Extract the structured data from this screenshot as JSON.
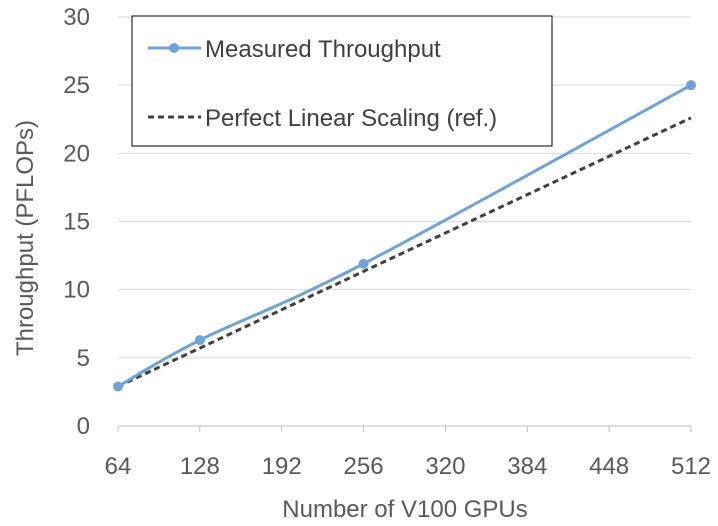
{
  "chart_data": {
    "type": "line",
    "xlabel": "Number of V100 GPUs",
    "ylabel": "Throughput (PFLOPs)",
    "xlim": [
      64,
      512
    ],
    "ylim": [
      0,
      30
    ],
    "x_ticks": [
      "64",
      "128",
      "192",
      "256",
      "320",
      "384",
      "448",
      "512"
    ],
    "y_ticks": [
      "0",
      "5",
      "10",
      "15",
      "20",
      "25",
      "30"
    ],
    "grid": "horizontal",
    "legend_position": "top-left",
    "series": [
      {
        "name": "Measured Throughput",
        "style": "solid",
        "markers": true,
        "color": "#6fa3d8",
        "x": [
          64,
          128,
          256,
          512
        ],
        "y": [
          2.9,
          6.3,
          11.9,
          25.0
        ]
      },
      {
        "name": "Perfect Linear Scaling (ref.)",
        "style": "dashed",
        "markers": false,
        "color": "#404040",
        "x": [
          64,
          512
        ],
        "y": [
          2.9,
          22.6
        ]
      }
    ]
  }
}
